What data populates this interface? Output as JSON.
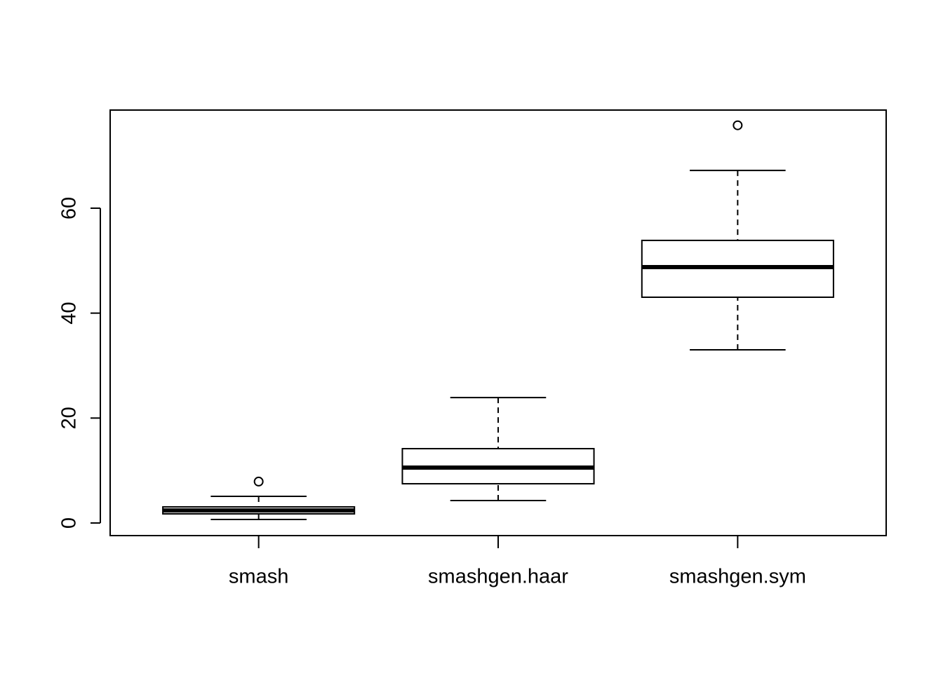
{
  "chart_data": {
    "type": "box",
    "categories": [
      "smash",
      "smashgen.haar",
      "smashgen.sym"
    ],
    "boxes": [
      {
        "min": 0.67,
        "q1": 1.74,
        "median": 2.4,
        "q3": 3.07,
        "max": 5.08,
        "outliers": [
          7.9
        ]
      },
      {
        "min": 4.28,
        "q1": 7.48,
        "median": 10.56,
        "q3": 14.17,
        "max": 23.9,
        "outliers": []
      },
      {
        "min": 33.0,
        "q1": 43.03,
        "median": 48.78,
        "q3": 53.86,
        "max": 67.2,
        "outliers": [
          75.8
        ]
      }
    ],
    "ylim": [
      -2.4,
      78.7
    ],
    "yticks": [
      0,
      20,
      40,
      60
    ],
    "color": "#000000",
    "grid": false
  }
}
